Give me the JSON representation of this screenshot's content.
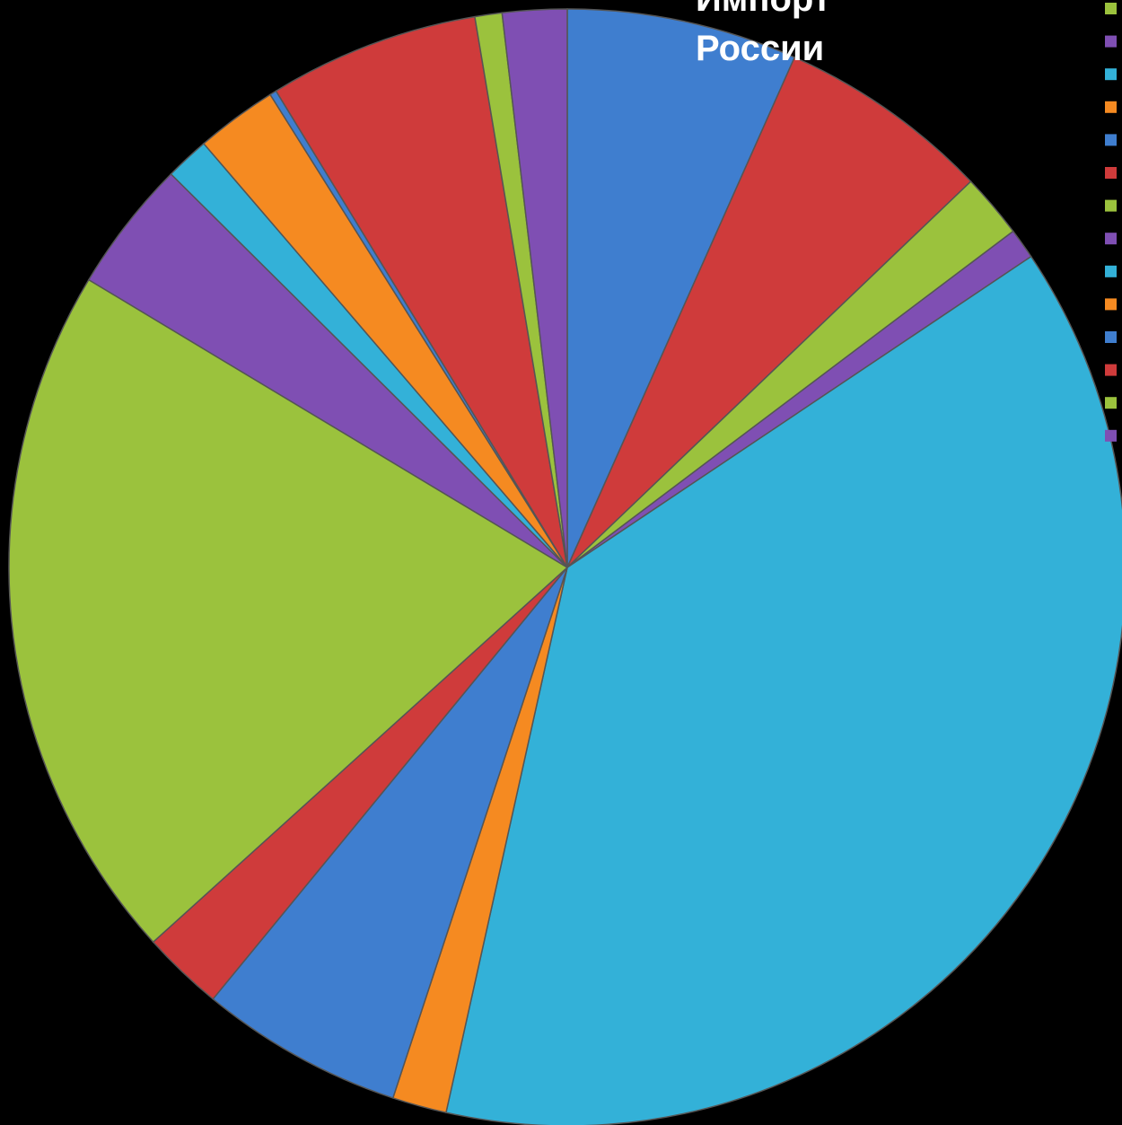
{
  "chart_data": {
    "type": "pie",
    "title_lines": [
      "Импорт",
      "России"
    ],
    "start_angle_deg": 0,
    "direction": "clockwise",
    "slices": [
      {
        "value": 6.8,
        "color": "#3f7ecf"
      },
      {
        "value": 6.3,
        "color": "#cf3b3b"
      },
      {
        "value": 1.9,
        "color": "#9bc23d"
      },
      {
        "value": 0.9,
        "color": "#7f4fb3"
      },
      {
        "value": 38.6,
        "color": "#33b1d8"
      },
      {
        "value": 1.6,
        "color": "#f58a21"
      },
      {
        "value": 6.0,
        "color": "#3f7ecf"
      },
      {
        "value": 2.4,
        "color": "#cf3b3b"
      },
      {
        "value": 20.7,
        "color": "#9bc23d"
      },
      {
        "value": 3.9,
        "color": "#7f4fb3"
      },
      {
        "value": 1.3,
        "color": "#33b1d8"
      },
      {
        "value": 2.4,
        "color": "#f58a21"
      },
      {
        "value": 0.2,
        "color": "#3f7ecf"
      },
      {
        "value": 6.2,
        "color": "#cf3b3b"
      },
      {
        "value": 0.8,
        "color": "#9bc23d"
      },
      {
        "value": 1.9,
        "color": "#7f4fb3"
      }
    ],
    "legend": {
      "placement": "top-right",
      "marker_colors": [
        "#9bc23d",
        "#7f4fb3",
        "#33b1d8",
        "#f58a21",
        "#3f7ecf",
        "#cf3b3b",
        "#9bc23d",
        "#7f4fb3",
        "#33b1d8",
        "#f58a21",
        "#3f7ecf",
        "#cf3b3b",
        "#9bc23d",
        "#7f4fb3"
      ]
    }
  }
}
